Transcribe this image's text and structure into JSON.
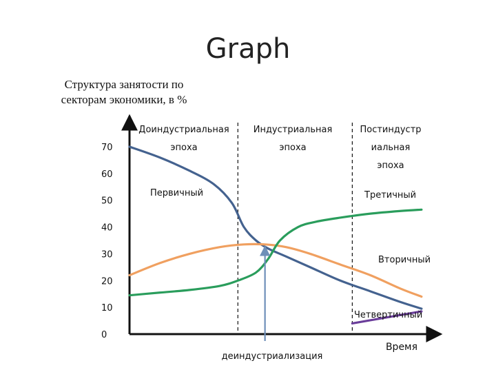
{
  "slide": {
    "title": "Graph"
  },
  "chart_data": {
    "type": "line",
    "title": "Структура занятости по секторам экономики, в %",
    "xlabel": "Время",
    "ylabel": "",
    "ylim": [
      0,
      80
    ],
    "y_ticks": [
      "0",
      "10",
      "20",
      "30",
      "40",
      "50",
      "60",
      "70"
    ],
    "x_range": [
      0,
      100
    ],
    "eras": [
      {
        "label": "Доиндустриальная эпоха",
        "lines": [
          "Доиндустриальная",
          "эпоха"
        ],
        "x_start": 0,
        "x_end": 36
      },
      {
        "label": "Индустриальная эпоха",
        "lines": [
          "Индустриальная",
          "эпоха"
        ],
        "x_start": 36,
        "x_end": 74
      },
      {
        "label": "Постиндустриальная эпоха",
        "lines": [
          "Постиндустр",
          "иальная",
          "эпоха"
        ],
        "x_start": 74,
        "x_end": 100
      }
    ],
    "annotation": {
      "label": "деиндустриализация",
      "x": 45,
      "y": 33.5
    },
    "series": [
      {
        "name": "Первичный",
        "color": "#44628f",
        "x": [
          0,
          10,
          20,
          28,
          34,
          38,
          42,
          46,
          52,
          60,
          70,
          80,
          90,
          97
        ],
        "y": [
          70,
          66,
          61,
          56,
          49,
          40,
          35,
          32,
          29,
          25,
          20,
          16,
          12,
          9.5
        ]
      },
      {
        "name": "Вторичный",
        "color": "#f0a060",
        "x": [
          0,
          10,
          20,
          30,
          38,
          45,
          52,
          60,
          70,
          80,
          90,
          97
        ],
        "y": [
          22,
          26.5,
          30,
          32.5,
          33.5,
          33.5,
          32.5,
          30,
          26,
          22,
          17,
          14
        ]
      },
      {
        "name": "Третичный",
        "color": "#2a9d5c",
        "x": [
          0,
          10,
          20,
          30,
          36,
          42,
          46,
          50,
          56,
          62,
          70,
          80,
          90,
          97
        ],
        "y": [
          14.5,
          15.5,
          16.5,
          18,
          20,
          23,
          28,
          35,
          40,
          42,
          43.5,
          45,
          46,
          46.5
        ]
      },
      {
        "name": "Четвертичный",
        "color": "#6a3d9a",
        "x": [
          74,
          97
        ],
        "y": [
          4,
          8.5
        ]
      }
    ]
  }
}
